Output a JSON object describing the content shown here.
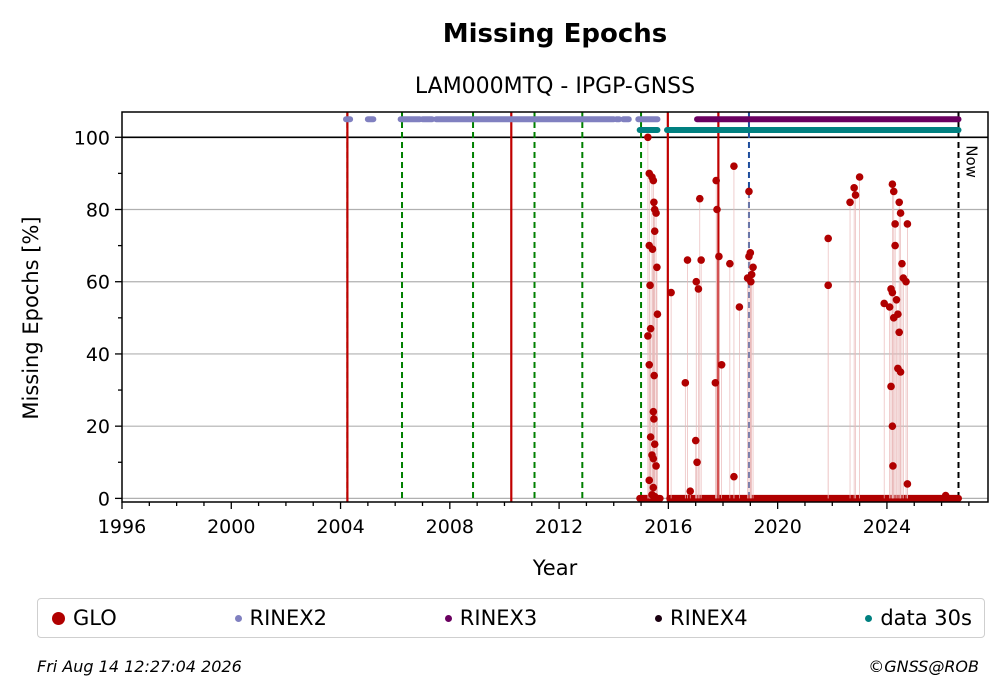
{
  "chart_data": {
    "type": "scatter",
    "title": "Missing Epochs",
    "subtitle": "LAM000MTQ - IPGP-GNSS",
    "xlabel": "Year",
    "ylabel": "Missing Epochs [%]",
    "xlim": [
      1996,
      2027.7
    ],
    "ylim": [
      -1,
      107
    ],
    "x_ticks": [
      1996,
      2000,
      2004,
      2008,
      2012,
      2016,
      2020,
      2024
    ],
    "y_ticks": [
      0,
      20,
      40,
      60,
      80,
      100
    ],
    "grid": "horizontal",
    "now_label": "Now",
    "now_year": 2026.62,
    "colors": {
      "glo": "#b00000",
      "rinex2": "#8080c0",
      "rinex3": "#6a0060",
      "rinex4": "#1a0010",
      "data30s": "#008080",
      "event_green": "#008000",
      "event_red": "#c00000",
      "event_blue": "#1f4e9c",
      "now_line": "#000000"
    },
    "vertical_events": {
      "green_dashed": [
        2004.25,
        2006.25,
        2008.85,
        2011.1,
        2012.85,
        2015.0
      ],
      "red_solid": [
        2004.25,
        2010.25,
        2015.98,
        2017.83
      ],
      "blue_dashed": [
        2018.95
      ]
    },
    "availability_bands": [
      {
        "name": "RINEX2",
        "y": 105,
        "segments": [
          [
            2004.2,
            2004.35
          ],
          [
            2005.0,
            2005.2
          ],
          [
            2006.2,
            2006.9
          ],
          [
            2007.0,
            2007.35
          ],
          [
            2007.5,
            2014.0
          ],
          [
            2014.1,
            2014.2
          ],
          [
            2014.35,
            2014.55
          ],
          [
            2014.9,
            2015.6
          ]
        ]
      },
      {
        "name": "RINEX3",
        "y": 105,
        "segments": [
          [
            2017.05,
            2026.62
          ]
        ]
      },
      {
        "name": "data 30s",
        "y": 102,
        "segments": [
          [
            2014.95,
            2015.6
          ],
          [
            2015.95,
            2026.62
          ]
        ]
      }
    ],
    "zero_band": {
      "name": "GLO",
      "y": 0,
      "segments": [
        [
          2014.95,
          2015.7
        ],
        [
          2016.05,
          2026.62
        ]
      ]
    },
    "series": [
      {
        "name": "GLO",
        "points": [
          [
            2015.25,
            100
          ],
          [
            2015.3,
            90
          ],
          [
            2015.4,
            89
          ],
          [
            2015.45,
            88
          ],
          [
            2015.47,
            82
          ],
          [
            2015.5,
            80
          ],
          [
            2015.55,
            79
          ],
          [
            2015.5,
            74
          ],
          [
            2015.3,
            70
          ],
          [
            2015.42,
            69
          ],
          [
            2015.58,
            64
          ],
          [
            2015.33,
            59
          ],
          [
            2015.6,
            51
          ],
          [
            2015.35,
            47
          ],
          [
            2015.25,
            45
          ],
          [
            2015.3,
            37
          ],
          [
            2015.48,
            34
          ],
          [
            2015.45,
            24
          ],
          [
            2015.47,
            22
          ],
          [
            2015.35,
            17
          ],
          [
            2015.5,
            15
          ],
          [
            2015.4,
            12
          ],
          [
            2015.45,
            11
          ],
          [
            2015.55,
            9
          ],
          [
            2015.3,
            5
          ],
          [
            2015.45,
            3
          ],
          [
            2015.4,
            1
          ],
          [
            2015.5,
            0.5
          ],
          [
            2016.1,
            57
          ],
          [
            2016.62,
            32
          ],
          [
            2016.7,
            66
          ],
          [
            2016.8,
            2
          ],
          [
            2017.02,
            60
          ],
          [
            2017.0,
            16
          ],
          [
            2017.05,
            10
          ],
          [
            2017.1,
            58
          ],
          [
            2017.15,
            83
          ],
          [
            2017.2,
            66
          ],
          [
            2017.75,
            88
          ],
          [
            2017.78,
            80
          ],
          [
            2017.85,
            67
          ],
          [
            2017.72,
            32
          ],
          [
            2017.95,
            37
          ],
          [
            2018.25,
            65
          ],
          [
            2018.4,
            92
          ],
          [
            2018.4,
            6
          ],
          [
            2018.6,
            53
          ],
          [
            2018.9,
            61
          ],
          [
            2018.95,
            85
          ],
          [
            2018.95,
            67
          ],
          [
            2019.0,
            68
          ],
          [
            2019.02,
            60
          ],
          [
            2019.05,
            62
          ],
          [
            2019.1,
            64
          ],
          [
            2021.85,
            72
          ],
          [
            2021.85,
            59
          ],
          [
            2022.65,
            82
          ],
          [
            2022.85,
            84
          ],
          [
            2022.8,
            86
          ],
          [
            2023.0,
            89
          ],
          [
            2023.9,
            54
          ],
          [
            2024.2,
            87
          ],
          [
            2024.25,
            85
          ],
          [
            2024.3,
            76
          ],
          [
            2024.45,
            82
          ],
          [
            2024.5,
            79
          ],
          [
            2024.55,
            65
          ],
          [
            2024.6,
            61
          ],
          [
            2024.75,
            76
          ],
          [
            2024.7,
            60
          ],
          [
            2024.15,
            58
          ],
          [
            2024.2,
            57
          ],
          [
            2024.1,
            53
          ],
          [
            2024.35,
            55
          ],
          [
            2024.4,
            51
          ],
          [
            2024.25,
            50
          ],
          [
            2024.45,
            46
          ],
          [
            2024.3,
            70
          ],
          [
            2024.4,
            36
          ],
          [
            2024.5,
            35
          ],
          [
            2024.15,
            31
          ],
          [
            2024.2,
            20
          ],
          [
            2024.22,
            9
          ],
          [
            2024.75,
            4
          ],
          [
            2026.15,
            0.8
          ]
        ]
      }
    ],
    "legend": [
      {
        "label": "GLO",
        "color": "#b00000",
        "size": "large"
      },
      {
        "label": "RINEX2",
        "color": "#8080c0",
        "size": "small"
      },
      {
        "label": "RINEX3",
        "color": "#6a0060",
        "size": "small"
      },
      {
        "label": "RINEX4",
        "color": "#1a0010",
        "size": "small"
      },
      {
        "label": "data 30s",
        "color": "#008080",
        "size": "small"
      }
    ]
  },
  "footer": {
    "timestamp": "Fri Aug 14 12:27:04 2026",
    "copyright": "©GNSS@ROB"
  }
}
